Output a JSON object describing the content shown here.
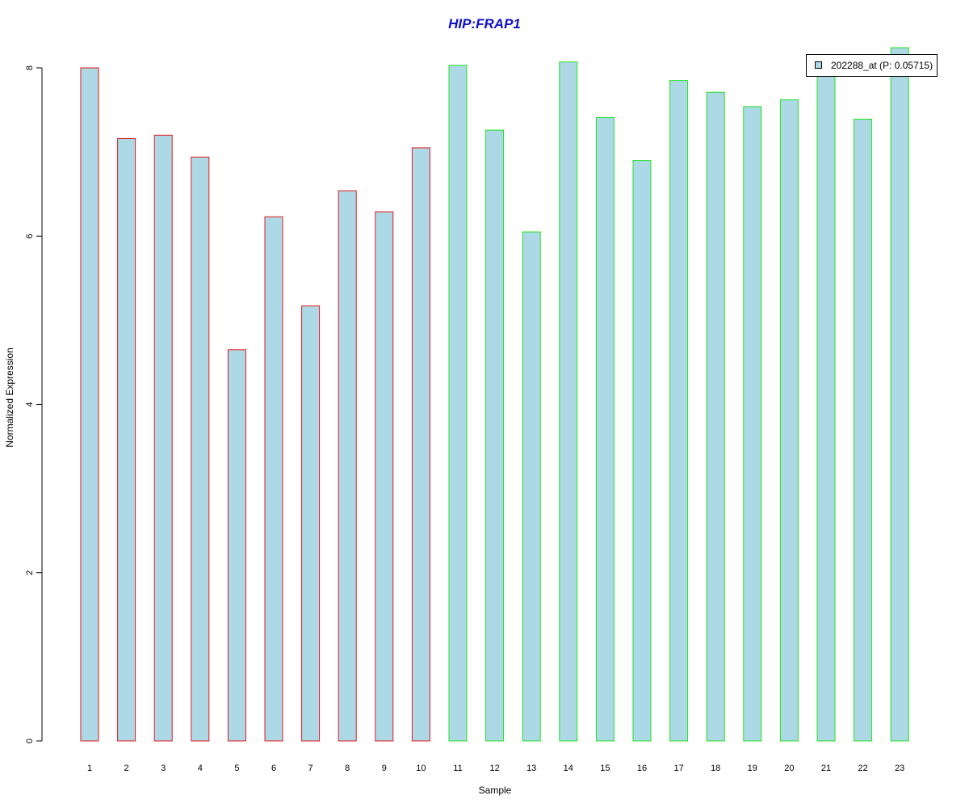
{
  "chart_data": {
    "type": "bar",
    "title": "HIP:FRAP1",
    "xlabel": "Sample",
    "ylabel": "Normalized Expression",
    "categories": [
      "1",
      "2",
      "3",
      "4",
      "5",
      "6",
      "7",
      "8",
      "9",
      "10",
      "11",
      "12",
      "13",
      "14",
      "15",
      "16",
      "17",
      "18",
      "19",
      "20",
      "21",
      "22",
      "23"
    ],
    "series": [
      {
        "name": "202288_at (P: 0.05715)",
        "values": [
          8.0,
          7.16,
          7.2,
          6.94,
          4.65,
          6.23,
          5.17,
          6.54,
          6.29,
          7.05,
          8.03,
          7.26,
          6.05,
          8.07,
          7.41,
          6.9,
          7.85,
          7.71,
          7.54,
          7.62,
          7.9,
          7.39,
          8.24
        ]
      }
    ],
    "bar_border_colors": [
      "#e3191c",
      "#e3191c",
      "#e3191c",
      "#e3191c",
      "#e3191c",
      "#e3191c",
      "#e3191c",
      "#e3191c",
      "#e3191c",
      "#e3191c",
      "#1fe31f",
      "#1fe31f",
      "#1fe31f",
      "#1fe31f",
      "#1fe31f",
      "#1fe31f",
      "#1fe31f",
      "#1fe31f",
      "#1fe31f",
      "#1fe31f",
      "#1fe31f",
      "#1fe31f",
      "#1fe31f"
    ],
    "bar_fill": "#add8e6",
    "title_color": "#1010c8",
    "ylim": [
      0,
      8.24
    ],
    "yticks": [
      0,
      2,
      4,
      6,
      8
    ],
    "ytick_labels": [
      "0",
      "2",
      "4",
      "6",
      "8"
    ],
    "grid": false,
    "legend_position": "top-right"
  }
}
